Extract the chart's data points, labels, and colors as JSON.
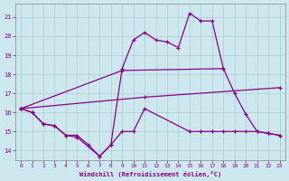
{
  "xlabel": "Windchill (Refroidissement éolien,°C)",
  "bg_color": "#cce8ee",
  "grid_color": "#aacccc",
  "line_color": "#880088",
  "xlim": [
    -0.5,
    23.5
  ],
  "ylim": [
    13.5,
    21.7
  ],
  "xticks": [
    0,
    1,
    2,
    3,
    4,
    5,
    6,
    7,
    8,
    9,
    10,
    11,
    12,
    13,
    14,
    15,
    16,
    17,
    18,
    19,
    20,
    21,
    22,
    23
  ],
  "yticks": [
    14,
    15,
    16,
    17,
    18,
    19,
    20,
    21
  ],
  "line1_x": [
    0,
    1,
    2,
    3,
    4,
    5,
    6,
    7,
    8,
    9,
    10,
    11,
    12,
    13,
    14,
    15,
    16,
    17,
    18,
    19,
    20,
    21,
    22,
    23
  ],
  "line1_y": [
    16.2,
    16.0,
    15.4,
    15.3,
    14.8,
    14.8,
    14.3,
    13.7,
    14.3,
    18.3,
    19.8,
    20.2,
    19.8,
    19.7,
    19.4,
    21.2,
    20.8,
    20.8,
    18.3,
    17.0,
    15.9,
    15.0,
    14.9,
    14.8
  ],
  "line2_x": [
    0,
    9,
    18
  ],
  "line2_y": [
    16.2,
    18.2,
    18.3
  ],
  "line3_x": [
    0,
    11,
    23
  ],
  "line3_y": [
    16.2,
    16.8,
    17.3
  ],
  "line4_x": [
    0,
    1,
    2,
    3,
    4,
    5,
    7,
    8,
    9,
    10,
    11,
    15,
    16,
    17,
    18,
    19,
    20,
    21,
    22,
    23
  ],
  "line4_y": [
    16.2,
    16.0,
    15.4,
    15.3,
    14.8,
    14.7,
    13.7,
    14.3,
    15.0,
    15.0,
    16.2,
    15.0,
    15.0,
    15.0,
    15.0,
    15.0,
    15.0,
    15.0,
    14.9,
    14.8
  ]
}
